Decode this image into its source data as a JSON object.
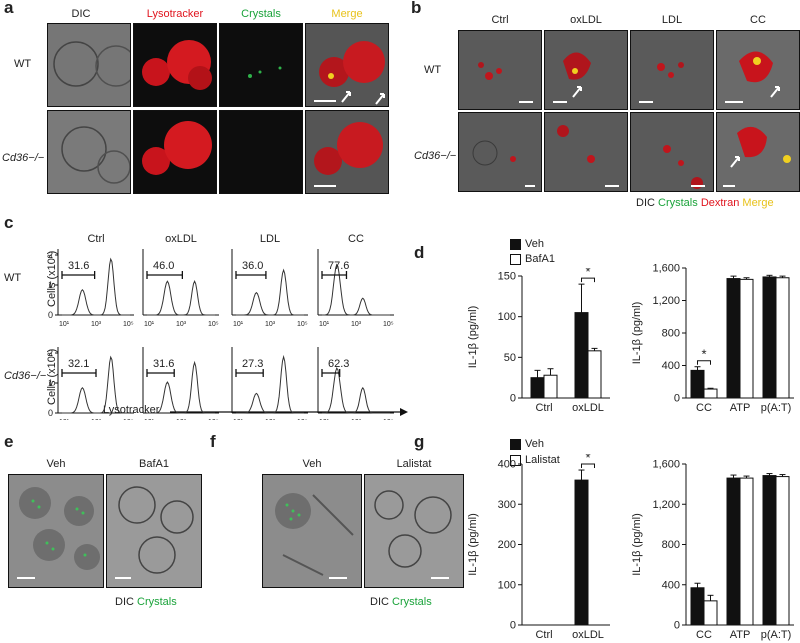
{
  "panels": {
    "a": "a",
    "b": "b",
    "c": "c",
    "d": "d",
    "e": "e",
    "f": "f",
    "g": "g"
  },
  "a": {
    "headers": [
      "DIC",
      "Lysotracker",
      "Crystals",
      "Merge"
    ],
    "header_colors": [
      "#222222",
      "#e0141e",
      "#1aa33a",
      "#e8c21a"
    ],
    "rows": [
      "WT",
      "Cd36−/−"
    ]
  },
  "b": {
    "headers": [
      "Ctrl",
      "oxLDL",
      "LDL",
      "CC"
    ],
    "rows": [
      "WT",
      "Cd36−/−"
    ],
    "legend": [
      {
        "text": "DIC",
        "color": "#222222"
      },
      {
        "text": "Crystals",
        "color": "#1aa33a"
      },
      {
        "text": "Dextran",
        "color": "#e0141e"
      },
      {
        "text": "Merge",
        "color": "#e8c21a"
      }
    ]
  },
  "c": {
    "headers": [
      "Ctrl",
      "oxLDL",
      "LDL",
      "CC"
    ],
    "rows": [
      "WT",
      "Cd36−/−"
    ],
    "ylabel": "Cells (x10³)",
    "xlabel": "Lysotracker",
    "yticks": [
      "0",
      "1",
      "2"
    ],
    "xticks": [
      "10¹",
      "10³",
      "10⁵"
    ],
    "gate_values": [
      [
        "31.6",
        "46.0",
        "36.0",
        "77.6"
      ],
      [
        "32.1",
        "31.6",
        "27.3",
        "62.3"
      ]
    ]
  },
  "e": {
    "headers": [
      "Veh",
      "BafA1"
    ],
    "legend": [
      {
        "text": "DIC",
        "color": "#222222"
      },
      {
        "text": "Crystals",
        "color": "#1aa33a"
      }
    ]
  },
  "f": {
    "headers": [
      "Veh",
      "Lalistat"
    ],
    "legend": [
      {
        "text": "DIC",
        "color": "#222222"
      },
      {
        "text": "Crystals",
        "color": "#1aa33a"
      }
    ]
  },
  "chart_data": [
    {
      "panel": "d-left",
      "type": "bar",
      "categories": [
        "Ctrl",
        "oxLDL"
      ],
      "series": [
        {
          "name": "Veh",
          "values": [
            25,
            105
          ],
          "errors": [
            9,
            35
          ]
        },
        {
          "name": "BafA1",
          "values": [
            28,
            58
          ],
          "errors": [
            8,
            3
          ]
        }
      ],
      "ylabel": "IL-1β (pg/ml)",
      "ylim": [
        0,
        150
      ],
      "yticks": [
        "0",
        "50",
        "100",
        "150"
      ],
      "significance": [
        {
          "category": "oxLDL",
          "label": "*"
        }
      ],
      "legend_position": "top-left"
    },
    {
      "panel": "d-right",
      "type": "bar",
      "categories": [
        "CC",
        "ATP",
        "p(A:T)"
      ],
      "series": [
        {
          "name": "Veh",
          "values": [
            340,
            1470,
            1490
          ],
          "errors": [
            45,
            30,
            20
          ]
        },
        {
          "name": "BafA1",
          "values": [
            110,
            1460,
            1480
          ],
          "errors": [
            10,
            20,
            20
          ]
        }
      ],
      "ylabel": "IL-1β (pg/ml)",
      "ylim": [
        0,
        1600
      ],
      "yticks": [
        "0",
        "400",
        "800",
        "1,200",
        "1,600"
      ],
      "significance": [
        {
          "category": "CC",
          "label": "*"
        }
      ]
    },
    {
      "panel": "g-left",
      "type": "bar",
      "categories": [
        "Ctrl",
        "oxLDL"
      ],
      "series": [
        {
          "name": "Veh",
          "values": [
            0,
            360
          ],
          "errors": [
            0,
            25
          ]
        },
        {
          "name": "Lalistat",
          "values": [
            0,
            0
          ],
          "errors": [
            0,
            0
          ]
        }
      ],
      "ylabel": "IL-1β (pg/ml)",
      "ylim": [
        0,
        400
      ],
      "yticks": [
        "0",
        "100",
        "200",
        "300",
        "400"
      ],
      "significance": [
        {
          "category": "oxLDL",
          "label": "*"
        }
      ],
      "legend_position": "top-left"
    },
    {
      "panel": "g-right",
      "type": "bar",
      "categories": [
        "CC",
        "ATP",
        "p(A:T)"
      ],
      "series": [
        {
          "name": "Veh",
          "values": [
            370,
            1460,
            1485
          ],
          "errors": [
            45,
            30,
            20
          ]
        },
        {
          "name": "Lalistat",
          "values": [
            240,
            1460,
            1475
          ],
          "errors": [
            55,
            20,
            20
          ]
        }
      ],
      "ylabel": "IL-1β (pg/ml)",
      "ylim": [
        0,
        1600
      ],
      "yticks": [
        "0",
        "400",
        "800",
        "1,200",
        "1,600"
      ]
    }
  ]
}
